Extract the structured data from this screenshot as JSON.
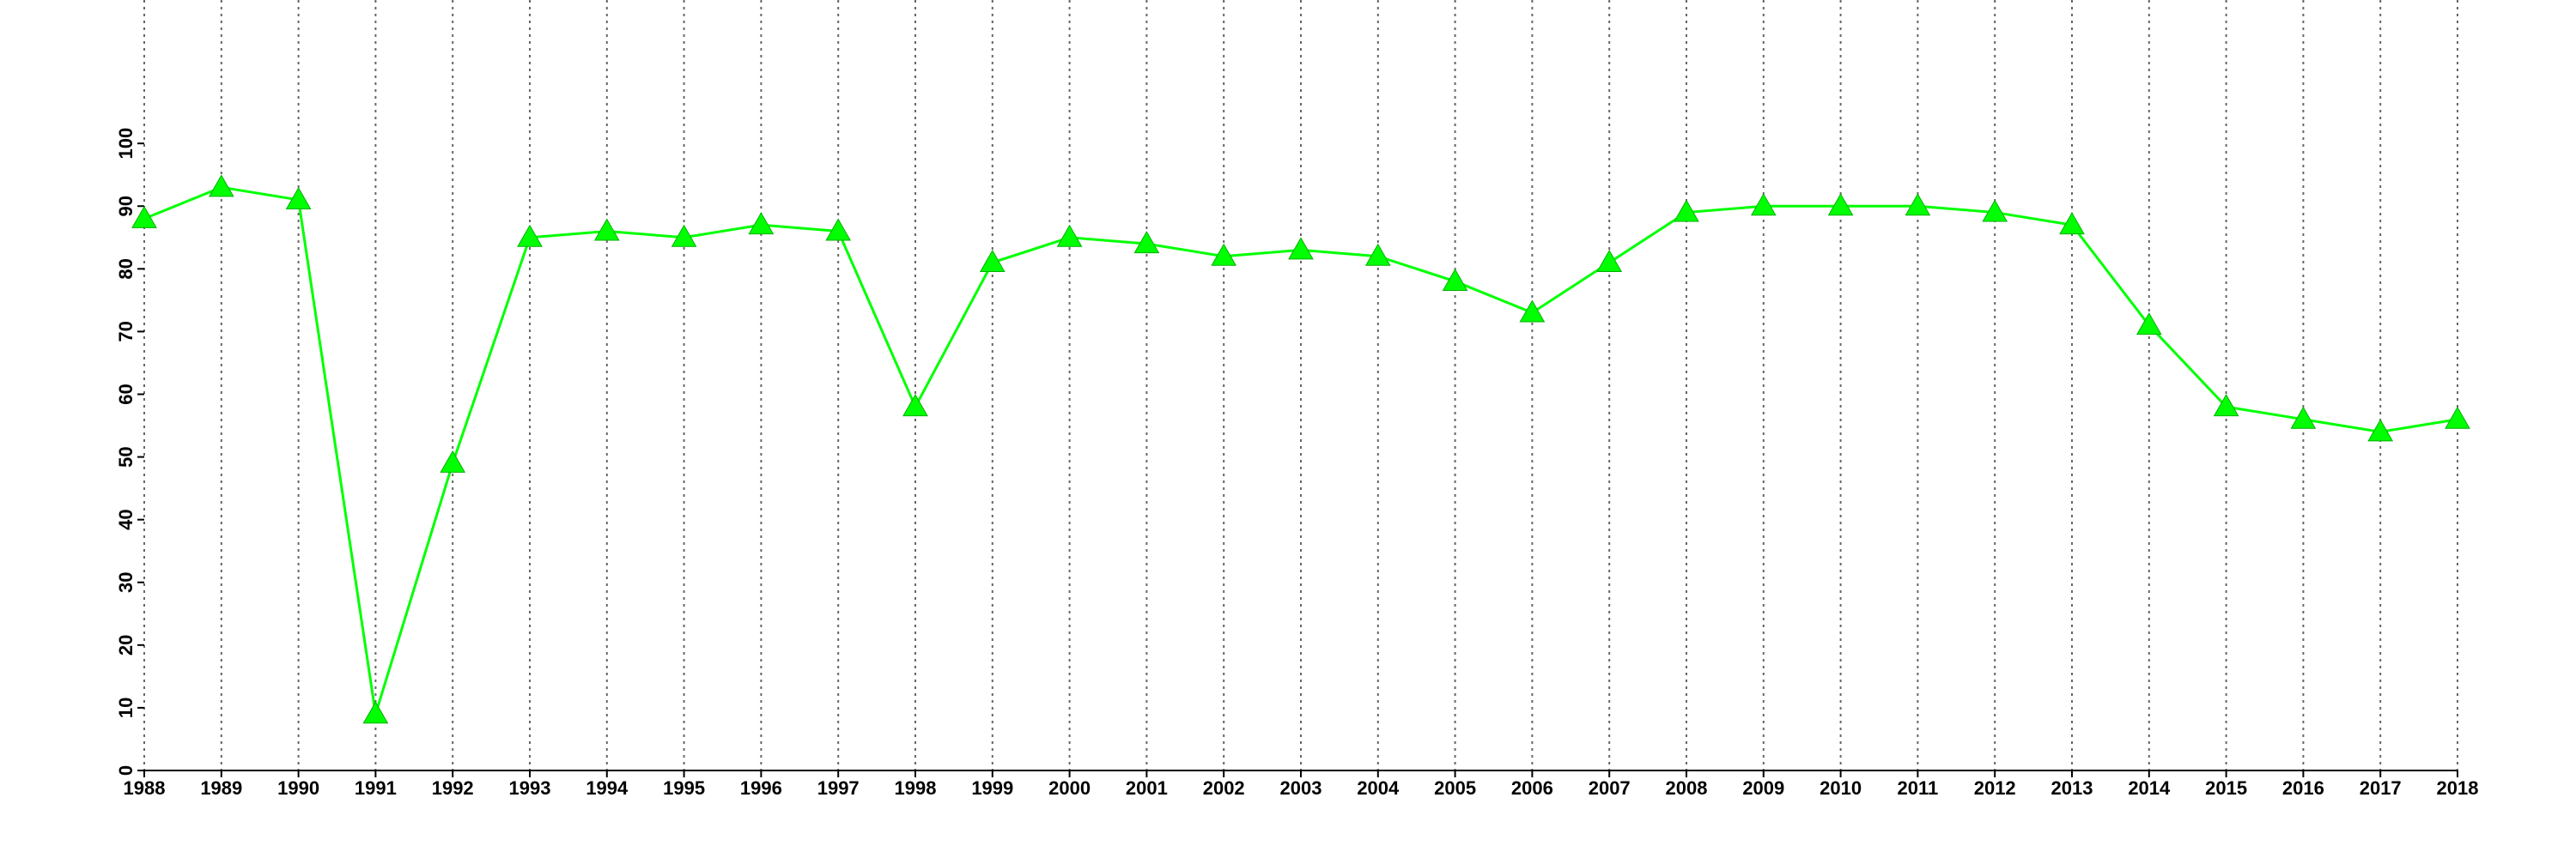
{
  "chart_data": {
    "type": "line",
    "x": [
      1988,
      1989,
      1990,
      1991,
      1992,
      1993,
      1994,
      1995,
      1996,
      1997,
      1998,
      1999,
      2000,
      2001,
      2002,
      2003,
      2004,
      2005,
      2006,
      2007,
      2008,
      2009,
      2010,
      2011,
      2012,
      2013,
      2014,
      2015,
      2016,
      2017,
      2018
    ],
    "series": [
      {
        "color": "#00ff00",
        "marker": "triangle",
        "values": [
          88,
          93,
          91,
          9,
          49,
          85,
          86,
          85,
          87,
          86,
          58,
          81,
          85,
          84,
          82,
          83,
          82,
          78,
          73,
          81,
          89,
          90,
          90,
          90,
          89,
          87,
          71,
          58,
          56,
          54,
          56
        ]
      }
    ],
    "xlim": [
      1988,
      2018
    ],
    "xticks": [
      1988,
      1989,
      1990,
      1991,
      1992,
      1993,
      1994,
      1995,
      1996,
      1997,
      1998,
      1999,
      2000,
      2001,
      2002,
      2003,
      2004,
      2005,
      2006,
      2007,
      2008,
      2009,
      2010,
      2011,
      2012,
      2013,
      2014,
      2015,
      2016,
      2017,
      2018
    ],
    "ylim": [
      0,
      120
    ],
    "yticks": [
      0,
      10,
      20,
      30,
      40,
      50,
      60,
      70,
      80,
      90,
      100
    ],
    "grid": "x"
  }
}
